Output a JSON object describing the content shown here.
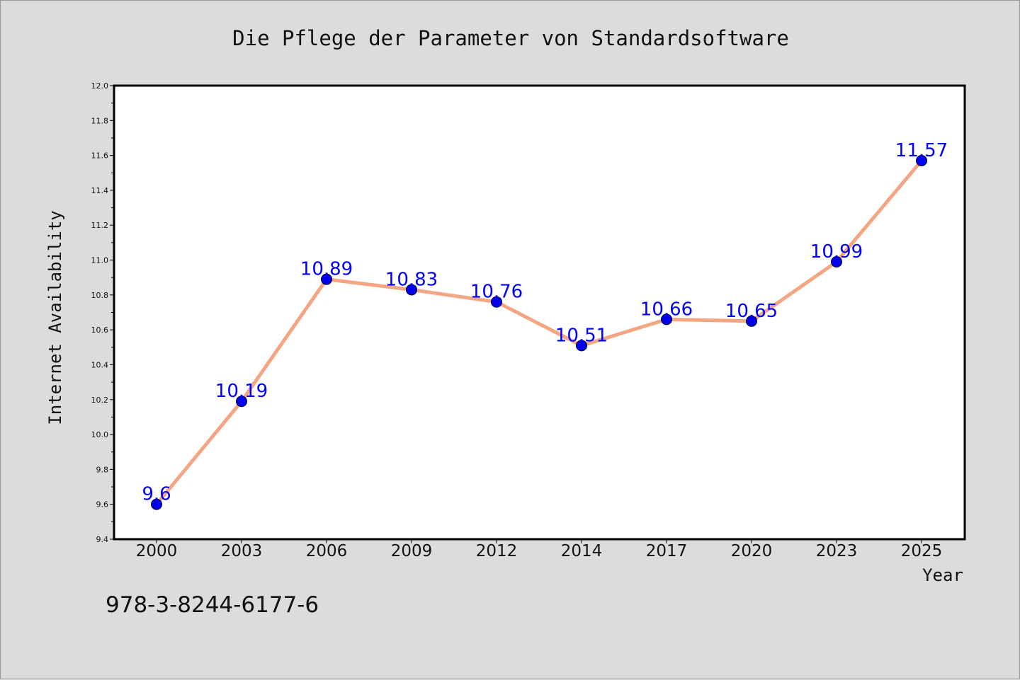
{
  "chart_data": {
    "type": "line",
    "title": "Die Pflege der Parameter von Standardsoftware",
    "xlabel": "Year",
    "ylabel": "Internet Availability",
    "categories": [
      "2000",
      "2003",
      "2006",
      "2009",
      "2012",
      "2014",
      "2017",
      "2020",
      "2023",
      "2025"
    ],
    "series": [
      {
        "values": [
          9.6,
          10.19,
          10.89,
          10.83,
          10.76,
          10.51,
          10.66,
          10.65,
          10.99,
          11.57
        ],
        "labels": [
          "9.6",
          "10.19",
          "10.89",
          "10.83",
          "10.76",
          "10.51",
          "10.66",
          "10.65",
          "10.99",
          "11.57"
        ],
        "line_color": "#f4a582",
        "marker_color": "#0000ee",
        "label_color": "#0000ff"
      }
    ],
    "ylim": [
      9.4,
      12.0
    ],
    "yticks": [
      "9.4",
      "9.6",
      "9.8",
      "10.0",
      "10.2",
      "10.4",
      "10.6",
      "10.8",
      "11.0",
      "11.2",
      "11.4",
      "11.6",
      "11.8",
      "12.0"
    ],
    "grid": false,
    "legend": "none"
  },
  "footer": {
    "text": "978-3-8244-6177-6"
  },
  "colors": {
    "background": "#dcdcdc",
    "plot_background": "#ffffff",
    "axes": "#000000"
  }
}
